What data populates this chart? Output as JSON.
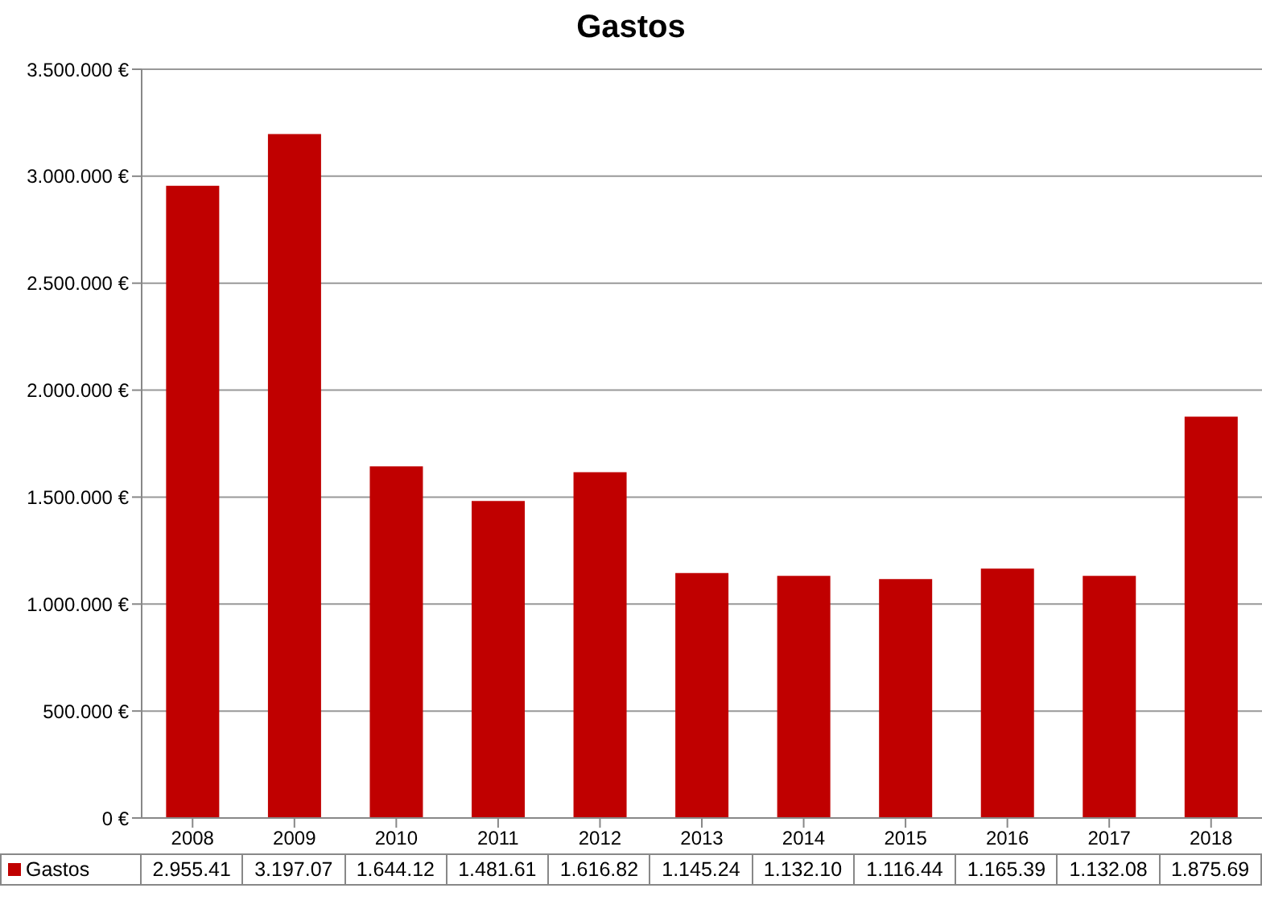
{
  "chart_data": {
    "type": "bar",
    "title": "Gastos",
    "categories": [
      "2008",
      "2009",
      "2010",
      "2011",
      "2012",
      "2013",
      "2014",
      "2015",
      "2016",
      "2017",
      "2018"
    ],
    "series": [
      {
        "name": "Gastos",
        "color": "#c00000",
        "values": [
          2955410,
          3197070,
          1644120,
          1481610,
          1616820,
          1145240,
          1132100,
          1116440,
          1165390,
          1132080,
          1875690
        ],
        "value_labels": [
          "2.955.41",
          "3.197.07",
          "1.644.12",
          "1.481.61",
          "1.616.82",
          "1.145.24",
          "1.132.10",
          "1.116.44",
          "1.165.39",
          "1.132.08",
          "1.875.69"
        ]
      }
    ],
    "ylim": [
      0,
      3500000
    ],
    "yticks": [
      {
        "value": 0,
        "label": "0 €"
      },
      {
        "value": 500000,
        "label": "500.000 €"
      },
      {
        "value": 1000000,
        "label": "1.000.000 €"
      },
      {
        "value": 1500000,
        "label": "1.500.000 €"
      },
      {
        "value": 2000000,
        "label": "2.000.000 €"
      },
      {
        "value": 2500000,
        "label": "2.500.000 €"
      },
      {
        "value": 3000000,
        "label": "3.000.000 €"
      },
      {
        "value": 3500000,
        "label": "3.500.000 €"
      }
    ],
    "grid": "y",
    "legend": "bottom"
  }
}
